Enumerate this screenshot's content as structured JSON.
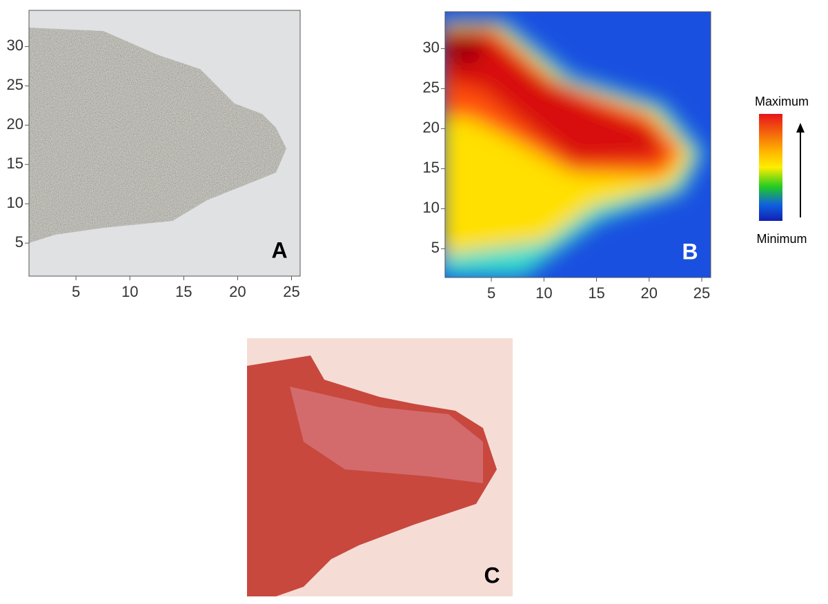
{
  "panels": [
    {
      "label": "A",
      "xlim": [
        0.64,
        25.8
      ],
      "ylim": [
        0.8,
        34.6
      ],
      "xticks": [
        5,
        10,
        15,
        20,
        25
      ],
      "yticks": [
        5,
        10,
        15,
        20,
        25,
        30
      ]
    },
    {
      "label": "B",
      "xlim": [
        0.6,
        25.85
      ],
      "ylim": [
        1.4,
        34.6
      ],
      "xticks": [
        5,
        10,
        15,
        20,
        25
      ],
      "yticks": [
        5,
        10,
        15,
        20,
        25,
        30
      ]
    },
    {
      "label": "C"
    }
  ],
  "colorbar": {
    "top": "Maximum",
    "bottom": "Minimum"
  }
}
